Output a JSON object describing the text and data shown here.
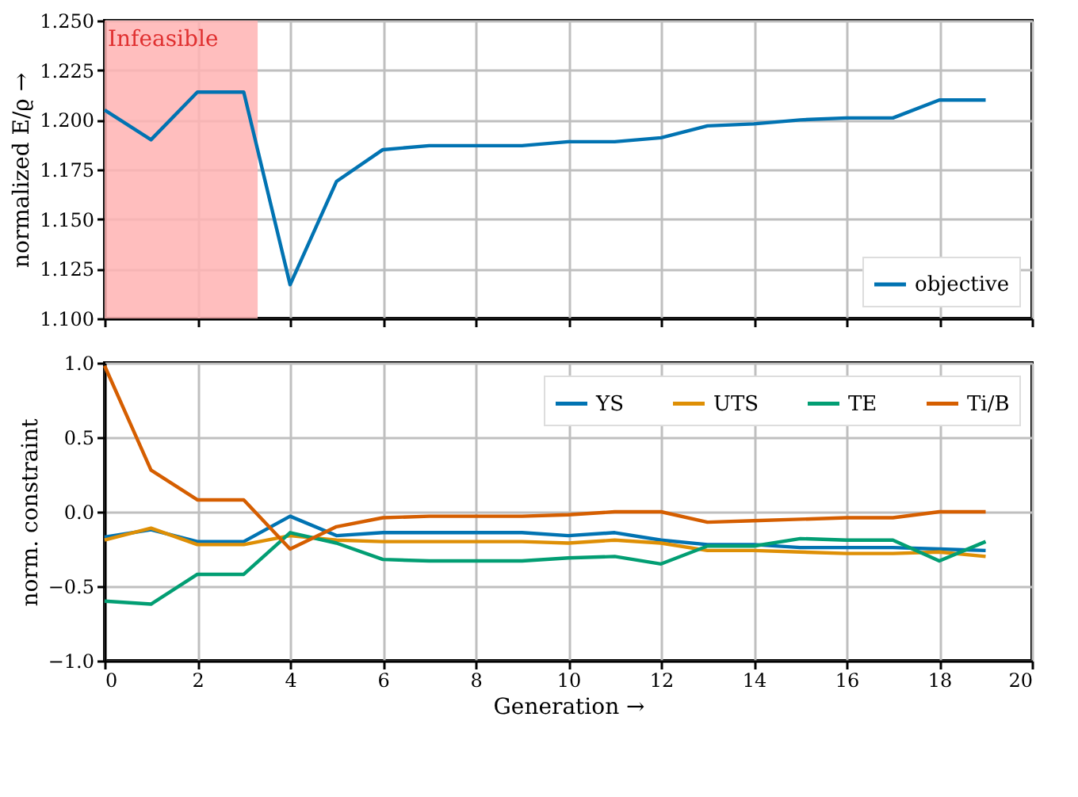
{
  "chart_data": [
    {
      "type": "line",
      "ylabel": "normalized E/ϱ  →",
      "x": [
        0,
        1,
        2,
        3,
        4,
        5,
        6,
        7,
        8,
        9,
        10,
        11,
        12,
        13,
        14,
        15,
        16,
        17,
        18,
        19
      ],
      "series": [
        {
          "name": "objective",
          "color": "#0173b2",
          "values": [
            1.205,
            1.19,
            1.214,
            1.214,
            1.117,
            1.169,
            1.185,
            1.187,
            1.187,
            1.187,
            1.189,
            1.189,
            1.191,
            1.197,
            1.198,
            1.2,
            1.201,
            1.201,
            1.21,
            1.21
          ]
        }
      ],
      "xlim": [
        0,
        20
      ],
      "xticks": [
        0,
        2,
        4,
        6,
        8,
        10,
        12,
        14,
        16,
        18,
        20
      ],
      "ylim": [
        1.1,
        1.25
      ],
      "yticks": [
        {
          "value": 1.1,
          "label": "1.100"
        },
        {
          "value": 1.125,
          "label": "1.125"
        },
        {
          "value": 1.15,
          "label": "1.150"
        },
        {
          "value": 1.175,
          "label": "1.175"
        },
        {
          "value": 1.2,
          "label": "1.200"
        },
        {
          "value": 1.225,
          "label": "1.225"
        },
        {
          "value": 1.25,
          "label": "1.250"
        }
      ],
      "bands": [
        {
          "axis": "x",
          "from": 0,
          "to": 3.3,
          "label": "Infeasible",
          "color": "#ffb3b3"
        }
      ],
      "grid": true,
      "legend": "bottom right",
      "tick_labels": "y",
      "line_style": "solid",
      "marker": "none"
    },
    {
      "type": "line",
      "xlabel": "Generation  →",
      "ylabel": "norm. constraint",
      "x": [
        0,
        1,
        2,
        3,
        4,
        5,
        6,
        7,
        8,
        9,
        10,
        11,
        12,
        13,
        14,
        15,
        16,
        17,
        18,
        19
      ],
      "series": [
        {
          "name": "YS",
          "color": "#0173b2",
          "values": [
            -0.17,
            -0.12,
            -0.2,
            -0.2,
            -0.03,
            -0.16,
            -0.14,
            -0.14,
            -0.14,
            -0.14,
            -0.16,
            -0.14,
            -0.19,
            -0.22,
            -0.22,
            -0.24,
            -0.24,
            -0.24,
            -0.25,
            -0.26
          ]
        },
        {
          "name": "UTS",
          "color": "#de8f05",
          "values": [
            -0.19,
            -0.11,
            -0.22,
            -0.22,
            -0.16,
            -0.19,
            -0.2,
            -0.2,
            -0.2,
            -0.2,
            -0.21,
            -0.19,
            -0.21,
            -0.26,
            -0.26,
            -0.27,
            -0.28,
            -0.28,
            -0.27,
            -0.3
          ]
        },
        {
          "name": "TE",
          "color": "#029e73",
          "values": [
            -0.6,
            -0.62,
            -0.42,
            -0.42,
            -0.14,
            -0.21,
            -0.32,
            -0.33,
            -0.33,
            -0.33,
            -0.31,
            -0.3,
            -0.35,
            -0.23,
            -0.23,
            -0.18,
            -0.19,
            -0.19,
            -0.33,
            -0.2
          ]
        },
        {
          "name": "Ti/B",
          "color": "#d55e00",
          "values": [
            0.98,
            0.28,
            0.08,
            0.08,
            -0.25,
            -0.1,
            -0.04,
            -0.03,
            -0.03,
            -0.03,
            -0.02,
            0.0,
            0.0,
            -0.07,
            -0.06,
            -0.05,
            -0.04,
            -0.04,
            0.0,
            0.0
          ]
        }
      ],
      "xlim": [
        0,
        20
      ],
      "xticks": [
        0,
        2,
        4,
        6,
        8,
        10,
        12,
        14,
        16,
        18,
        20
      ],
      "ylim": [
        -1.0,
        1.0
      ],
      "yticks": [
        {
          "value": -1.0,
          "label": "−1.0"
        },
        {
          "value": -0.5,
          "label": "−0.5"
        },
        {
          "value": 0,
          "label": "0.0"
        },
        {
          "value": 0.5,
          "label": "0.5"
        },
        {
          "value": 1.0,
          "label": "1.0"
        }
      ],
      "grid": true,
      "legend": "top right",
      "line_style": "solid",
      "marker": "none"
    }
  ]
}
